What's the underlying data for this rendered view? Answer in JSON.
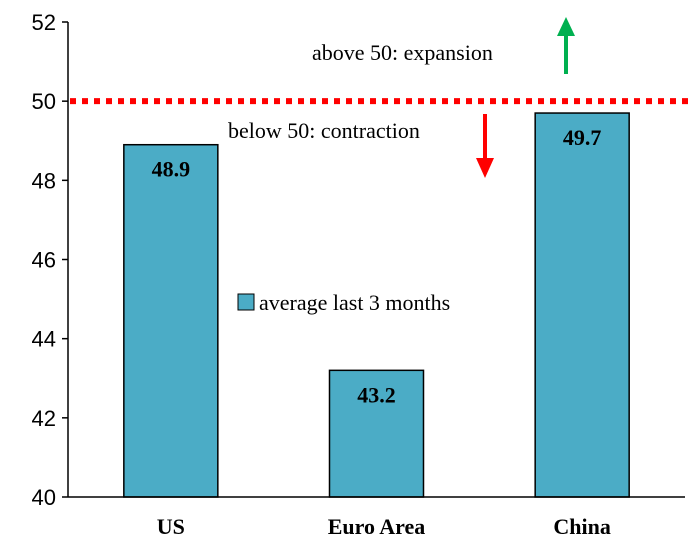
{
  "chart_data": {
    "type": "bar",
    "categories": [
      "US",
      "Euro Area",
      "China"
    ],
    "series": [
      {
        "name": "average last 3 months",
        "values": [
          48.9,
          43.2,
          49.7
        ]
      }
    ],
    "data_labels": [
      "48.9",
      "43.2",
      "49.7"
    ],
    "ylim": [
      40,
      52
    ],
    "yticks": [
      40,
      42,
      44,
      46,
      48,
      50,
      52
    ],
    "grid": false,
    "legend_position": "center",
    "reference_line": {
      "value": 50,
      "style": "dotted",
      "color": "#ff0000"
    },
    "annotations": {
      "above": "above 50: expansion",
      "below": "below 50: contraction"
    },
    "colors": {
      "bar": "#4bacc6",
      "bar_border": "#000000",
      "reference_line": "#ff0000",
      "up_arrow": "#00b050",
      "down_arrow": "#ff0000"
    }
  }
}
